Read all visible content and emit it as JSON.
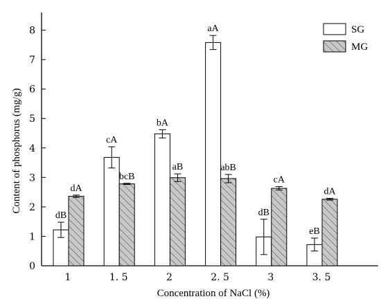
{
  "chart_data": {
    "type": "bar",
    "xlabel": "Concentration of NaCl (%)",
    "ylabel": "Content of phosphorus (mg/g)",
    "ylim": [
      0,
      8.6
    ],
    "yticks": [
      "0",
      "1",
      "2",
      "3",
      "4",
      "5",
      "6",
      "7",
      "8"
    ],
    "categories": [
      "1",
      "1. 5",
      "2",
      "2. 5",
      "3",
      "3. 5"
    ],
    "legend_position": "top-right",
    "series": [
      {
        "name": "SG",
        "fill": "#ffffff",
        "pattern": "none",
        "values": [
          1.22,
          3.68,
          4.48,
          7.58,
          0.98,
          0.72
        ],
        "errors": [
          0.26,
          0.36,
          0.14,
          0.24,
          0.6,
          0.22
        ],
        "labels": [
          "dB",
          "cA",
          "bA",
          "aA",
          "dB",
          "eB"
        ]
      },
      {
        "name": "MG",
        "fill": "#c8c8c8",
        "pattern": "diagonal-hatch",
        "values": [
          2.36,
          2.78,
          2.99,
          2.96,
          2.63,
          2.26
        ],
        "errors": [
          0.04,
          0.02,
          0.13,
          0.14,
          0.06,
          0.03
        ],
        "labels": [
          "dA",
          "bcB",
          "aB",
          "abB",
          "cA",
          "dA"
        ]
      }
    ]
  }
}
